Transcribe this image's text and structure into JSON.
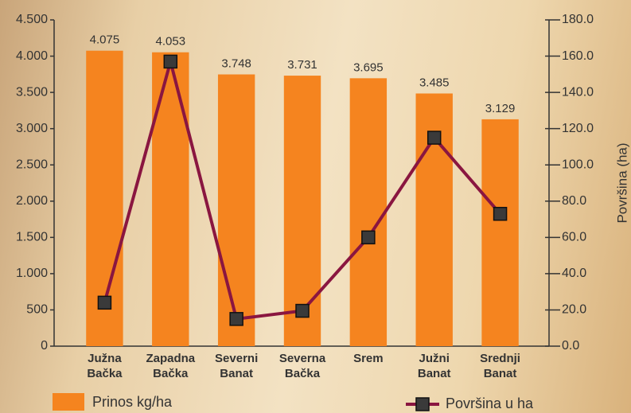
{
  "chart_data": {
    "type": "bar",
    "categories": [
      "Južna Bačka",
      "Zapadna Bačka",
      "Severni Banat",
      "Severna Bačka",
      "Srem",
      "Južni Banat",
      "Srednji Banat"
    ],
    "series": [
      {
        "name": "Prinos kg/ha",
        "type": "bar",
        "color": "#f5841f",
        "values": [
          4075,
          4053,
          3748,
          3731,
          3695,
          3485,
          3129
        ],
        "value_labels": [
          "4.075",
          "4.053",
          "3.748",
          "3.731",
          "3.695",
          "3.485",
          "3.129"
        ]
      },
      {
        "name": "Površina u ha",
        "type": "line",
        "axis": "y2",
        "color": "#8a1640",
        "values": [
          24,
          157,
          15,
          19.5,
          60,
          115,
          73
        ]
      }
    ],
    "ylim": [
      0,
      4500
    ],
    "yticks": [
      {
        "value": 0,
        "label": "0"
      },
      {
        "value": 500,
        "label": "500"
      },
      {
        "value": 1000,
        "label": "1.000"
      },
      {
        "value": 1500,
        "label": "1.500"
      },
      {
        "value": 2000,
        "label": "2.000"
      },
      {
        "value": 2500,
        "label": "2.500"
      },
      {
        "value": 3000,
        "label": "3.000"
      },
      {
        "value": 3500,
        "label": "3.500"
      },
      {
        "value": 4000,
        "label": "4.000"
      },
      {
        "value": 4500,
        "label": "4.500"
      }
    ],
    "y2lim": [
      0,
      180
    ],
    "y2ticks": [
      {
        "value": 0,
        "label": "0.0"
      },
      {
        "value": 20,
        "label": "20.0"
      },
      {
        "value": 40,
        "label": "40.0"
      },
      {
        "value": 60,
        "label": "60.0"
      },
      {
        "value": 80,
        "label": "80.0"
      },
      {
        "value": 100,
        "label": "100.0"
      },
      {
        "value": 120,
        "label": "120.0"
      },
      {
        "value": 140,
        "label": "140.0"
      },
      {
        "value": 160,
        "label": "160.0"
      },
      {
        "value": 180,
        "label": "180.0"
      }
    ],
    "y2label": "Površina (ha)"
  }
}
